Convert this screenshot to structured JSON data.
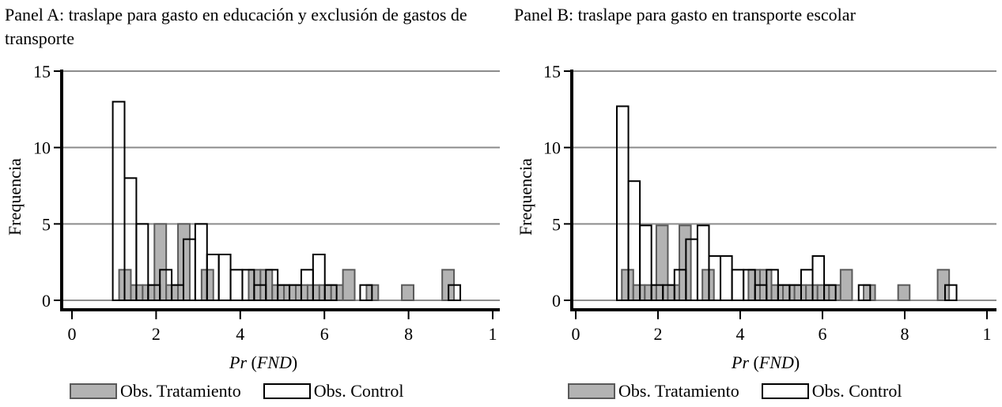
{
  "colors": {
    "treatment_fill": "#b3b3b3",
    "treatment_stroke": "#5a5a5a",
    "control_fill": "#ffffff",
    "control_stroke": "#000000",
    "gridline": "#8c8c8c",
    "axis": "#000000"
  },
  "panels": [
    {
      "title": "Panel A: traslape para gasto en educación y exclusión de gastos de transporte",
      "ylabel": "Frequencia",
      "xlabel_pr": "Pr",
      "xlabel_fnd": "FND",
      "legend": {
        "treatment": "Obs. Tratamiento",
        "control": "Obs. Control"
      }
    },
    {
      "title": "Panel B: traslape para gasto en transporte escolar",
      "ylabel": "Frequencia",
      "xlabel_pr": "Pr",
      "xlabel_fnd": "FND",
      "legend": {
        "treatment": "Obs. Tratamiento",
        "control": "Obs. Control"
      }
    }
  ],
  "chart_data": [
    {
      "type": "bar",
      "subtype": "overlaid histogram",
      "title": "Panel A: traslape para gasto en educación y exclusión de gastos de transporte",
      "xlabel": "Pr (FND)",
      "ylabel": "Frequencia",
      "xlim": [
        0,
        1
      ],
      "ylim": [
        0,
        15
      ],
      "xticks": [
        0,
        0.2,
        0.4,
        0.6,
        0.8,
        1
      ],
      "xtick_labels": [
        "0",
        "2",
        "4",
        "6",
        "8",
        "1"
      ],
      "yticks": [
        0,
        5,
        10,
        15
      ],
      "ytick_labels": [
        "0",
        "5",
        "10",
        "15"
      ],
      "grid": "horizontal",
      "legend_position": "bottom",
      "bin_width": 0.028,
      "series": [
        {
          "name": "Obs. Control",
          "bins": [
            {
              "x": 0.097,
              "count": 13
            },
            {
              "x": 0.125,
              "count": 8
            },
            {
              "x": 0.153,
              "count": 5
            },
            {
              "x": 0.181,
              "count": 1
            },
            {
              "x": 0.209,
              "count": 2
            },
            {
              "x": 0.237,
              "count": 1
            },
            {
              "x": 0.265,
              "count": 4
            },
            {
              "x": 0.293,
              "count": 5
            },
            {
              "x": 0.321,
              "count": 3
            },
            {
              "x": 0.349,
              "count": 3
            },
            {
              "x": 0.377,
              "count": 2
            },
            {
              "x": 0.405,
              "count": 2
            },
            {
              "x": 0.433,
              "count": 1
            },
            {
              "x": 0.461,
              "count": 2
            },
            {
              "x": 0.489,
              "count": 1
            },
            {
              "x": 0.517,
              "count": 1
            },
            {
              "x": 0.545,
              "count": 2
            },
            {
              "x": 0.573,
              "count": 3
            },
            {
              "x": 0.601,
              "count": 1
            },
            {
              "x": 0.685,
              "count": 1
            },
            {
              "x": 0.895,
              "count": 1
            }
          ]
        },
        {
          "name": "Obs. Tratamiento",
          "bins": [
            {
              "x": 0.112,
              "count": 2
            },
            {
              "x": 0.14,
              "count": 1
            },
            {
              "x": 0.168,
              "count": 1
            },
            {
              "x": 0.196,
              "count": 5
            },
            {
              "x": 0.224,
              "count": 1
            },
            {
              "x": 0.252,
              "count": 5
            },
            {
              "x": 0.308,
              "count": 2
            },
            {
              "x": 0.42,
              "count": 2
            },
            {
              "x": 0.448,
              "count": 2
            },
            {
              "x": 0.476,
              "count": 1
            },
            {
              "x": 0.504,
              "count": 1
            },
            {
              "x": 0.532,
              "count": 1
            },
            {
              "x": 0.56,
              "count": 1
            },
            {
              "x": 0.588,
              "count": 1
            },
            {
              "x": 0.616,
              "count": 1
            },
            {
              "x": 0.644,
              "count": 2
            },
            {
              "x": 0.7,
              "count": 1
            },
            {
              "x": 0.784,
              "count": 1
            },
            {
              "x": 0.88,
              "count": 2
            }
          ]
        }
      ]
    },
    {
      "type": "bar",
      "subtype": "overlaid histogram",
      "title": "Panel B: traslape para gasto en transporte escolar",
      "xlabel": "Pr (FND)",
      "ylabel": "Frequencia",
      "xlim": [
        0,
        1
      ],
      "ylim": [
        0,
        15
      ],
      "xticks": [
        0,
        0.2,
        0.4,
        0.6,
        0.8,
        1
      ],
      "xtick_labels": [
        "0",
        "2",
        "4",
        "6",
        "8",
        "1"
      ],
      "yticks": [
        0,
        5,
        10,
        15
      ],
      "ytick_labels": [
        "0",
        "5",
        "10",
        "15"
      ],
      "grid": "horizontal",
      "legend_position": "bottom",
      "bin_width": 0.028,
      "series": [
        {
          "name": "Obs. Control",
          "bins": [
            {
              "x": 0.1,
              "count": 12.7
            },
            {
              "x": 0.128,
              "count": 7.8
            },
            {
              "x": 0.156,
              "count": 4.9
            },
            {
              "x": 0.184,
              "count": 1
            },
            {
              "x": 0.212,
              "count": 1
            },
            {
              "x": 0.24,
              "count": 2
            },
            {
              "x": 0.268,
              "count": 4
            },
            {
              "x": 0.296,
              "count": 4.9
            },
            {
              "x": 0.324,
              "count": 2.9
            },
            {
              "x": 0.352,
              "count": 2.9
            },
            {
              "x": 0.38,
              "count": 2
            },
            {
              "x": 0.408,
              "count": 2
            },
            {
              "x": 0.436,
              "count": 1
            },
            {
              "x": 0.464,
              "count": 2
            },
            {
              "x": 0.492,
              "count": 1
            },
            {
              "x": 0.52,
              "count": 1
            },
            {
              "x": 0.548,
              "count": 2
            },
            {
              "x": 0.576,
              "count": 2.9
            },
            {
              "x": 0.604,
              "count": 1
            },
            {
              "x": 0.688,
              "count": 1
            },
            {
              "x": 0.898,
              "count": 1
            }
          ]
        },
        {
          "name": "Obs. Tratamiento",
          "bins": [
            {
              "x": 0.112,
              "count": 2
            },
            {
              "x": 0.14,
              "count": 1
            },
            {
              "x": 0.168,
              "count": 1
            },
            {
              "x": 0.196,
              "count": 4.9
            },
            {
              "x": 0.224,
              "count": 1
            },
            {
              "x": 0.252,
              "count": 4.9
            },
            {
              "x": 0.308,
              "count": 2
            },
            {
              "x": 0.42,
              "count": 2
            },
            {
              "x": 0.448,
              "count": 2
            },
            {
              "x": 0.476,
              "count": 1
            },
            {
              "x": 0.504,
              "count": 1
            },
            {
              "x": 0.532,
              "count": 1
            },
            {
              "x": 0.56,
              "count": 1
            },
            {
              "x": 0.588,
              "count": 1
            },
            {
              "x": 0.616,
              "count": 1
            },
            {
              "x": 0.644,
              "count": 2
            },
            {
              "x": 0.7,
              "count": 1
            },
            {
              "x": 0.784,
              "count": 1
            },
            {
              "x": 0.88,
              "count": 2
            }
          ]
        }
      ]
    }
  ]
}
